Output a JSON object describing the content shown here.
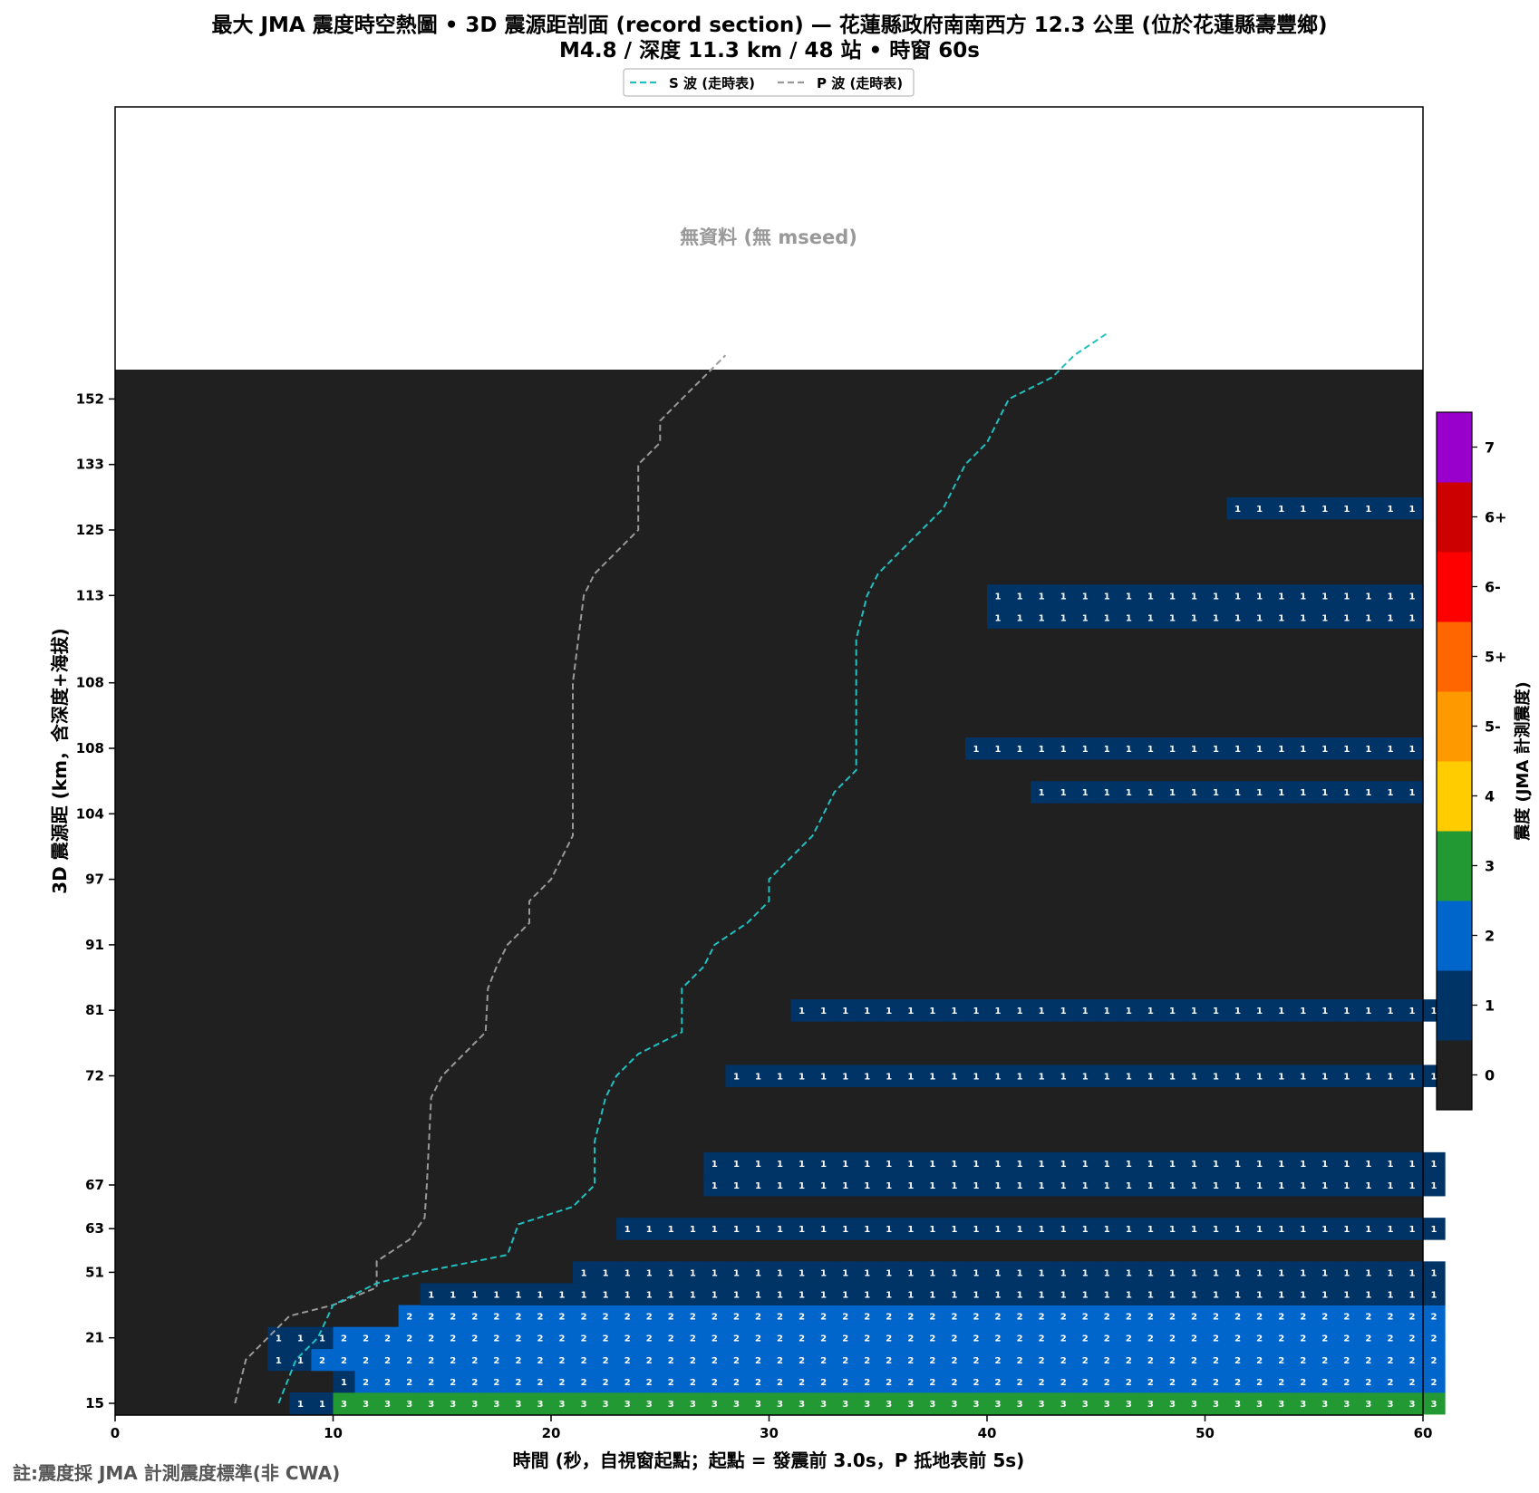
{
  "chart_data": {
    "type": "heatmap",
    "title": "最大 JMA 震度時空熱圖 • 3D 震源距剖面 (record section) — 花蓮縣政府南南西方  12.3  公里 (位於花蓮縣壽豐鄉)",
    "subtitle": "M4.8 / 深度 11.3 km / 48 站 • 時窗 60s",
    "xlabel": "時間 (秒，自視窗起點；起點 = 發震前 3.0s，P 抵地表前 5s)",
    "ylabel": "3D 震源距 (km，含深度+海拔)",
    "xlim": [
      0,
      60
    ],
    "x_ticks": [
      0,
      10,
      20,
      30,
      40,
      50,
      60
    ],
    "y_ticks": [
      "15",
      "21",
      "51",
      "63",
      "67",
      "72",
      "81",
      "91",
      "97",
      "104",
      "108",
      "108",
      "113",
      "125",
      "133",
      "152"
    ],
    "grid": false,
    "no_data_text": "無資料 (無 mseed)",
    "legend": {
      "position": "top-center",
      "entries": [
        {
          "label": "S 波 (走時表)",
          "color": "#20c0c0"
        },
        {
          "label": "P 波 (走時表)",
          "color": "#999999"
        }
      ]
    },
    "colorbar": {
      "label": "震度 (JMA 計測震度)",
      "levels": [
        {
          "label": "0",
          "color": "#202020"
        },
        {
          "label": "1",
          "color": "#003366"
        },
        {
          "label": "2",
          "color": "#0066cc"
        },
        {
          "label": "3",
          "color": "#229933"
        },
        {
          "label": "4",
          "color": "#ffcc00"
        },
        {
          "label": "5-",
          "color": "#ff9900"
        },
        {
          "label": "5+",
          "color": "#ff6600"
        },
        {
          "label": "6-",
          "color": "#ff0000"
        },
        {
          "label": "6+",
          "color": "#cc0000"
        },
        {
          "label": "7",
          "color": "#9900cc"
        }
      ]
    },
    "rows": [
      {
        "pos": 0,
        "start": 8,
        "values": [
          1,
          1
        ]
      },
      {
        "pos": 0,
        "start": 10,
        "values": [
          3,
          3,
          3,
          3,
          3,
          3,
          3,
          3,
          3,
          3,
          3,
          3,
          3,
          3,
          3,
          3,
          3,
          3,
          3,
          3,
          3,
          3,
          3,
          3,
          3,
          3,
          3,
          3,
          3,
          3,
          3,
          3,
          3,
          3,
          3,
          3,
          3,
          3,
          3,
          3,
          3,
          3,
          3,
          3,
          3,
          3,
          3,
          3,
          3,
          3,
          3
        ]
      },
      {
        "pos": 1,
        "start": 10,
        "values": [
          1
        ]
      },
      {
        "pos": 1,
        "start": 11,
        "values": [
          2,
          2,
          2,
          2,
          2,
          2,
          2,
          2,
          2,
          2,
          2,
          2,
          2,
          2,
          2,
          2,
          2,
          2,
          2,
          2,
          2,
          2,
          2,
          2,
          2,
          2,
          2,
          2,
          2,
          2,
          2,
          2,
          2,
          2,
          2,
          2,
          2,
          2,
          2,
          2,
          2,
          2,
          2,
          2,
          2,
          2,
          2,
          2,
          2,
          2
        ]
      },
      {
        "pos": 2,
        "start": 7,
        "values": [
          1,
          1
        ]
      },
      {
        "pos": 2,
        "start": 9,
        "values": [
          2,
          2,
          2,
          2,
          2,
          2,
          2,
          2,
          2,
          2,
          2,
          2,
          2,
          2,
          2,
          2,
          2,
          2,
          2,
          2,
          2,
          2,
          2,
          2,
          2,
          2,
          2,
          2,
          2,
          2,
          2,
          2,
          2,
          2,
          2,
          2,
          2,
          2,
          2,
          2,
          2,
          2,
          2,
          2,
          2,
          2,
          2,
          2,
          2,
          2,
          2,
          2
        ]
      },
      {
        "pos": 3,
        "start": 7,
        "values": [
          1,
          1,
          1
        ]
      },
      {
        "pos": 3,
        "start": 10,
        "values": [
          2,
          2,
          2,
          2,
          2,
          2,
          2,
          2,
          2,
          2,
          2,
          2,
          2,
          2,
          2,
          2,
          2,
          2,
          2,
          2,
          2,
          2,
          2,
          2,
          2,
          2,
          2,
          2,
          2,
          2,
          2,
          2,
          2,
          2,
          2,
          2,
          2,
          2,
          2,
          2,
          2,
          2,
          2,
          2,
          2,
          2,
          2,
          2,
          2,
          2,
          2
        ]
      },
      {
        "pos": 4,
        "start": 13,
        "values": [
          2,
          2,
          2,
          2,
          2,
          2,
          2,
          2,
          2,
          2,
          2,
          2,
          2,
          2,
          2,
          2,
          2,
          2,
          2,
          2,
          2,
          2,
          2,
          2,
          2,
          2,
          2,
          2,
          2,
          2,
          2,
          2,
          2,
          2,
          2,
          2,
          2,
          2,
          2,
          2,
          2,
          2,
          2,
          2,
          2,
          2,
          2,
          2
        ]
      },
      {
        "pos": 5,
        "start": 14,
        "values": [
          1,
          1,
          1,
          1,
          1,
          1,
          1,
          1,
          1,
          1,
          1,
          1,
          1,
          1,
          1,
          1,
          1,
          1,
          1,
          1,
          1,
          1,
          1,
          1,
          1,
          1,
          1,
          1,
          1,
          1,
          1,
          1,
          1,
          1,
          1,
          1,
          1,
          1,
          1,
          1,
          1,
          1,
          1,
          1,
          1,
          1,
          1
        ]
      },
      {
        "pos": 6,
        "start": 21,
        "values": [
          1,
          1,
          1,
          1,
          1,
          1,
          1,
          1,
          1,
          1,
          1,
          1,
          1,
          1,
          1,
          1,
          1,
          1,
          1,
          1,
          1,
          1,
          1,
          1,
          1,
          1,
          1,
          1,
          1,
          1,
          1,
          1,
          1,
          1,
          1,
          1,
          1,
          1,
          1,
          1
        ]
      },
      {
        "pos": 8,
        "start": 23,
        "values": [
          1,
          1,
          1,
          1,
          1,
          1,
          1,
          1,
          1,
          1,
          1,
          1,
          1,
          1,
          1,
          1,
          1,
          1,
          1,
          1,
          1,
          1,
          1,
          1,
          1,
          1,
          1,
          1,
          1,
          1,
          1,
          1,
          1,
          1,
          1,
          1,
          1,
          1
        ]
      },
      {
        "pos": 10,
        "start": 27,
        "values": [
          1,
          1,
          1,
          1,
          1,
          1,
          1,
          1,
          1,
          1,
          1,
          1,
          1,
          1,
          1,
          1,
          1,
          1,
          1,
          1,
          1,
          1,
          1,
          1,
          1,
          1,
          1,
          1,
          1,
          1,
          1,
          1,
          1,
          1
        ]
      },
      {
        "pos": 11,
        "start": 27,
        "values": [
          1,
          1,
          1,
          1,
          1,
          1,
          1,
          1,
          1,
          1,
          1,
          1,
          1,
          1,
          1,
          1,
          1,
          1,
          1,
          1,
          1,
          1,
          1,
          1,
          1,
          1,
          1,
          1,
          1,
          1,
          1,
          1,
          1,
          1
        ]
      },
      {
        "pos": 15,
        "start": 28,
        "values": [
          1,
          1,
          1,
          1,
          1,
          1,
          1,
          1,
          1,
          1,
          1,
          1,
          1,
          1,
          1,
          1,
          1,
          1,
          1,
          1,
          1,
          1,
          1,
          1,
          1,
          1,
          1,
          1,
          1,
          1,
          1,
          1,
          1
        ]
      },
      {
        "pos": 18,
        "start": 31,
        "values": [
          1,
          1,
          1,
          1,
          1,
          1,
          1,
          1,
          1,
          1,
          1,
          1,
          1,
          1,
          1,
          1,
          1,
          1,
          1,
          1,
          1,
          1,
          1,
          1,
          1,
          1,
          1,
          1,
          1,
          1
        ]
      },
      {
        "pos": 28,
        "start": 42,
        "values": [
          1,
          1,
          1,
          1,
          1,
          1,
          1,
          1,
          1,
          1,
          1,
          1,
          1,
          1,
          1,
          1,
          1,
          1
        ]
      },
      {
        "pos": 30,
        "start": 39,
        "values": [
          1,
          1,
          1,
          1,
          1,
          1,
          1,
          1,
          1,
          1,
          1,
          1,
          1,
          1,
          1,
          1,
          1,
          1,
          1,
          1,
          1
        ]
      },
      {
        "pos": 36,
        "start": 40,
        "values": [
          1,
          1,
          1,
          1,
          1,
          1,
          1,
          1,
          1,
          1,
          1,
          1,
          1,
          1,
          1,
          1,
          1,
          1,
          1,
          1
        ]
      },
      {
        "pos": 37,
        "start": 40,
        "values": [
          1,
          1,
          1,
          1,
          1,
          1,
          1,
          1,
          1,
          1,
          1,
          1,
          1,
          1,
          1,
          1,
          1,
          1,
          1,
          1
        ]
      },
      {
        "pos": 41,
        "start": 51,
        "values": [
          1,
          1,
          1,
          1,
          1,
          1,
          1,
          1,
          1
        ]
      }
    ],
    "s_wave": [
      [
        7.5,
        0
      ],
      [
        8.3,
        2
      ],
      [
        9.3,
        3
      ],
      [
        10,
        4.5
      ],
      [
        12,
        5.5
      ],
      [
        14,
        6
      ],
      [
        15.5,
        6.3
      ],
      [
        18,
        6.8
      ],
      [
        18.5,
        8.2
      ],
      [
        21,
        9
      ],
      [
        22,
        10
      ],
      [
        22,
        12
      ],
      [
        22.5,
        14
      ],
      [
        23,
        15
      ],
      [
        24,
        16
      ],
      [
        25,
        16.5
      ],
      [
        26,
        17
      ],
      [
        26,
        19
      ],
      [
        27,
        20
      ],
      [
        27.5,
        21
      ],
      [
        29,
        22
      ],
      [
        30,
        23
      ],
      [
        30,
        24
      ],
      [
        31,
        25
      ],
      [
        32,
        26
      ],
      [
        33,
        28
      ],
      [
        34,
        29
      ],
      [
        34,
        35
      ],
      [
        34.5,
        37
      ],
      [
        35,
        38
      ],
      [
        36,
        39
      ],
      [
        37,
        40
      ],
      [
        38,
        41
      ],
      [
        39,
        43
      ],
      [
        40,
        44
      ],
      [
        40.5,
        45
      ],
      [
        41,
        46
      ],
      [
        43,
        47
      ],
      [
        44,
        48
      ],
      [
        45.5,
        49
      ]
    ],
    "p_wave": [
      [
        5.5,
        0
      ],
      [
        6,
        2
      ],
      [
        7,
        3
      ],
      [
        8,
        4
      ],
      [
        10,
        4.5
      ],
      [
        12,
        5.3
      ],
      [
        12,
        6.5
      ],
      [
        13.5,
        7.5
      ],
      [
        14.2,
        8.5
      ],
      [
        14.3,
        10
      ],
      [
        14.5,
        14
      ],
      [
        15,
        15
      ],
      [
        16,
        16
      ],
      [
        17,
        17
      ],
      [
        17.1,
        19
      ],
      [
        17.5,
        20
      ],
      [
        18,
        21
      ],
      [
        19,
        22
      ],
      [
        19,
        23
      ],
      [
        20,
        24
      ],
      [
        21,
        26
      ],
      [
        21,
        28
      ],
      [
        21,
        30
      ],
      [
        21,
        33
      ],
      [
        21.5,
        37
      ],
      [
        22,
        38
      ],
      [
        23,
        39
      ],
      [
        24,
        40
      ],
      [
        24,
        43
      ],
      [
        25,
        44
      ],
      [
        25,
        45
      ],
      [
        26,
        46
      ],
      [
        27,
        47
      ],
      [
        28,
        48
      ]
    ],
    "note": "註:震度採 JMA 計測震度標準(非 CWA)"
  }
}
